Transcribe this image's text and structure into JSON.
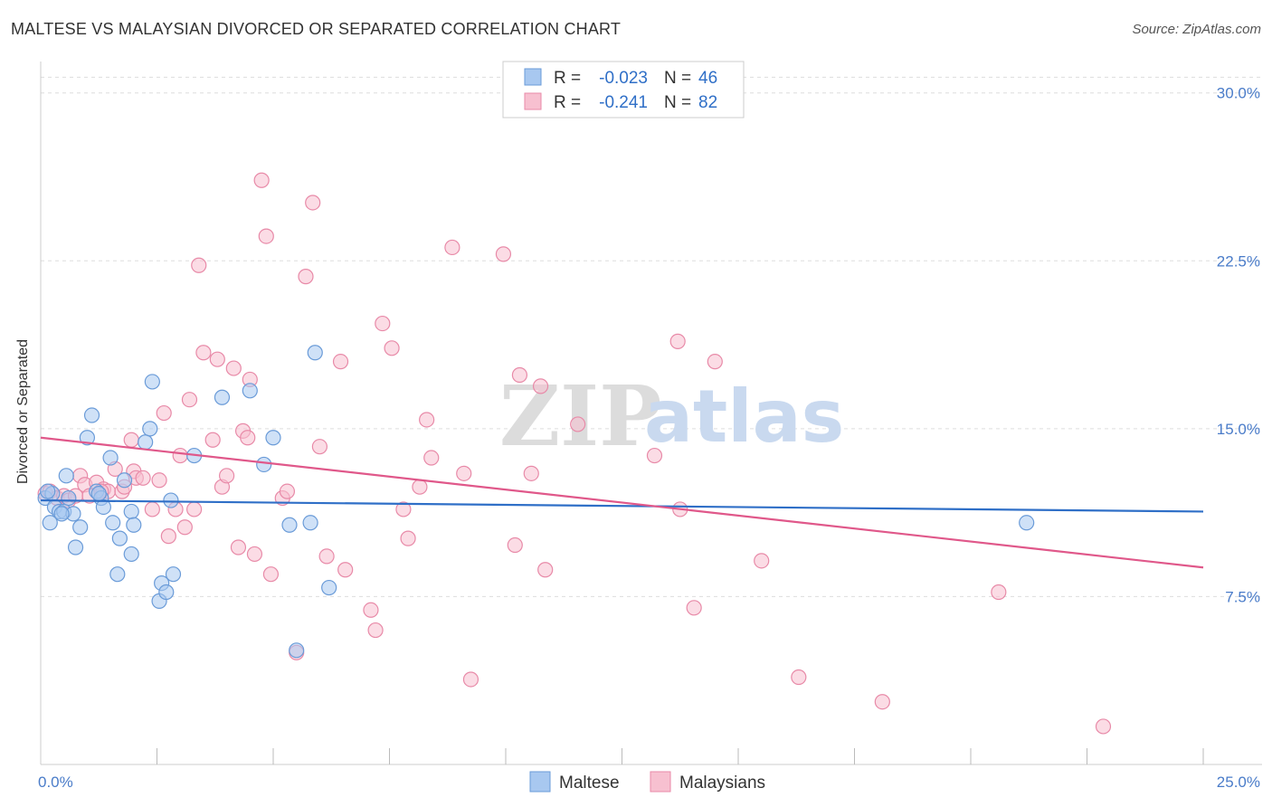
{
  "title": "MALTESE VS MALAYSIAN DIVORCED OR SEPARATED CORRELATION CHART",
  "source": "Source: ZipAtlas.com",
  "colors": {
    "maltese_fill": "#a8c8f0",
    "maltese_stroke": "#6a9bd8",
    "maltese_line": "#2f6fc7",
    "malaysian_fill": "#f7c0d0",
    "malaysian_stroke": "#e88aa8",
    "malaysian_line": "#e0588a",
    "value_text": "#2f6fc7",
    "grid": "#dddddd"
  },
  "watermark": {
    "zip": "ZIP",
    "atlas": "atlas"
  },
  "legend": {
    "rows": [
      {
        "r_label": "R =",
        "r_value": "-0.023",
        "n_label": "N =",
        "n_value": "46"
      },
      {
        "r_label": "R =",
        "r_value": "-0.241",
        "n_label": "N =",
        "n_value": "82"
      }
    ]
  },
  "bottom_legend": [
    "Maltese",
    "Malaysians"
  ],
  "chart_data": {
    "type": "scatter",
    "title": "MALTESE VS MALAYSIAN DIVORCED OR SEPARATED CORRELATION CHART",
    "xlabel": "",
    "ylabel": "Divorced or Separated",
    "xlim": [
      0,
      25
    ],
    "ylim": [
      0,
      31
    ],
    "x_tick_labels": [
      {
        "value": 0,
        "label": "0.0%"
      },
      {
        "value": 25,
        "label": "25.0%"
      }
    ],
    "y_tick_labels": [
      {
        "value": 7.5,
        "label": "7.5%"
      },
      {
        "value": 15,
        "label": "15.0%"
      },
      {
        "value": 22.5,
        "label": "22.5%"
      },
      {
        "value": 30,
        "label": "30.0%"
      }
    ],
    "grid": true,
    "series": [
      {
        "name": "Maltese",
        "points": [
          [
            0.1,
            11.9
          ],
          [
            0.2,
            10.8
          ],
          [
            0.25,
            12.1
          ],
          [
            0.3,
            11.5
          ],
          [
            0.4,
            11.3
          ],
          [
            0.5,
            11.3
          ],
          [
            0.55,
            12.9
          ],
          [
            0.6,
            11.9
          ],
          [
            0.7,
            11.2
          ],
          [
            0.75,
            9.7
          ],
          [
            0.85,
            10.6
          ],
          [
            1.0,
            14.6
          ],
          [
            1.1,
            15.6
          ],
          [
            1.2,
            12.2
          ],
          [
            1.3,
            11.9
          ],
          [
            1.35,
            11.5
          ],
          [
            1.5,
            13.7
          ],
          [
            1.55,
            10.8
          ],
          [
            1.65,
            8.5
          ],
          [
            1.7,
            10.1
          ],
          [
            1.8,
            12.7
          ],
          [
            1.95,
            9.4
          ],
          [
            1.95,
            11.3
          ],
          [
            2.0,
            10.7
          ],
          [
            2.25,
            14.4
          ],
          [
            2.35,
            15.0
          ],
          [
            2.4,
            17.1
          ],
          [
            2.55,
            7.3
          ],
          [
            2.6,
            8.1
          ],
          [
            2.7,
            7.7
          ],
          [
            2.8,
            11.8
          ],
          [
            2.85,
            8.5
          ],
          [
            3.3,
            13.8
          ],
          [
            3.9,
            16.4
          ],
          [
            4.5,
            16.7
          ],
          [
            4.8,
            13.4
          ],
          [
            5.0,
            14.6
          ],
          [
            5.35,
            10.7
          ],
          [
            5.5,
            5.1
          ],
          [
            5.8,
            10.8
          ],
          [
            5.9,
            18.4
          ],
          [
            6.2,
            7.9
          ],
          [
            21.2,
            10.8
          ],
          [
            0.15,
            12.2
          ],
          [
            0.45,
            11.2
          ],
          [
            1.25,
            12.1
          ]
        ]
      },
      {
        "name": "Malaysians",
        "points": [
          [
            0.1,
            12.1
          ],
          [
            0.2,
            12.2
          ],
          [
            0.35,
            11.9
          ],
          [
            0.5,
            12.0
          ],
          [
            0.6,
            11.8
          ],
          [
            0.75,
            12.0
          ],
          [
            0.85,
            12.9
          ],
          [
            0.95,
            12.5
          ],
          [
            1.05,
            12.0
          ],
          [
            1.2,
            12.6
          ],
          [
            1.35,
            12.3
          ],
          [
            1.45,
            12.2
          ],
          [
            1.6,
            13.2
          ],
          [
            1.75,
            12.2
          ],
          [
            1.8,
            12.4
          ],
          [
            1.95,
            14.5
          ],
          [
            2.0,
            13.1
          ],
          [
            2.05,
            12.8
          ],
          [
            2.2,
            12.8
          ],
          [
            2.4,
            11.4
          ],
          [
            2.55,
            12.7
          ],
          [
            2.65,
            15.7
          ],
          [
            2.75,
            10.2
          ],
          [
            2.9,
            11.4
          ],
          [
            3.0,
            13.8
          ],
          [
            3.1,
            10.6
          ],
          [
            3.2,
            16.3
          ],
          [
            3.3,
            11.4
          ],
          [
            3.4,
            22.3
          ],
          [
            3.5,
            18.4
          ],
          [
            3.7,
            14.5
          ],
          [
            3.8,
            18.1
          ],
          [
            3.9,
            12.4
          ],
          [
            4.0,
            12.9
          ],
          [
            4.15,
            17.7
          ],
          [
            4.25,
            9.7
          ],
          [
            4.35,
            14.9
          ],
          [
            4.45,
            14.6
          ],
          [
            4.5,
            17.2
          ],
          [
            4.6,
            9.4
          ],
          [
            4.75,
            26.1
          ],
          [
            4.85,
            23.6
          ],
          [
            4.95,
            8.5
          ],
          [
            5.2,
            11.9
          ],
          [
            5.3,
            12.2
          ],
          [
            5.5,
            5.0
          ],
          [
            5.7,
            21.8
          ],
          [
            5.85,
            25.1
          ],
          [
            6.0,
            14.2
          ],
          [
            6.15,
            9.3
          ],
          [
            6.45,
            18.0
          ],
          [
            6.55,
            8.7
          ],
          [
            7.1,
            6.9
          ],
          [
            7.2,
            6.0
          ],
          [
            7.35,
            19.7
          ],
          [
            7.55,
            18.6
          ],
          [
            7.8,
            11.4
          ],
          [
            7.9,
            10.1
          ],
          [
            8.15,
            12.4
          ],
          [
            8.3,
            15.4
          ],
          [
            8.4,
            13.7
          ],
          [
            8.85,
            23.1
          ],
          [
            9.1,
            13.0
          ],
          [
            9.25,
            3.8
          ],
          [
            9.95,
            22.8
          ],
          [
            10.2,
            9.8
          ],
          [
            10.3,
            17.4
          ],
          [
            10.55,
            13.0
          ],
          [
            10.75,
            16.9
          ],
          [
            10.85,
            8.7
          ],
          [
            11.55,
            15.2
          ],
          [
            13.2,
            13.8
          ],
          [
            13.7,
            18.9
          ],
          [
            13.75,
            11.4
          ],
          [
            14.05,
            7.0
          ],
          [
            14.5,
            18.0
          ],
          [
            15.5,
            9.1
          ],
          [
            16.3,
            3.9
          ],
          [
            18.1,
            2.8
          ],
          [
            20.6,
            7.7
          ],
          [
            22.85,
            1.7
          ],
          [
            1.3,
            12.2
          ]
        ]
      }
    ],
    "trend_lines": [
      {
        "name": "Maltese",
        "x": [
          0,
          25
        ],
        "y": [
          11.8,
          11.3
        ]
      },
      {
        "name": "Malaysians",
        "x": [
          0,
          25
        ],
        "y": [
          14.6,
          8.8
        ]
      }
    ],
    "legend_position": "top-center"
  }
}
